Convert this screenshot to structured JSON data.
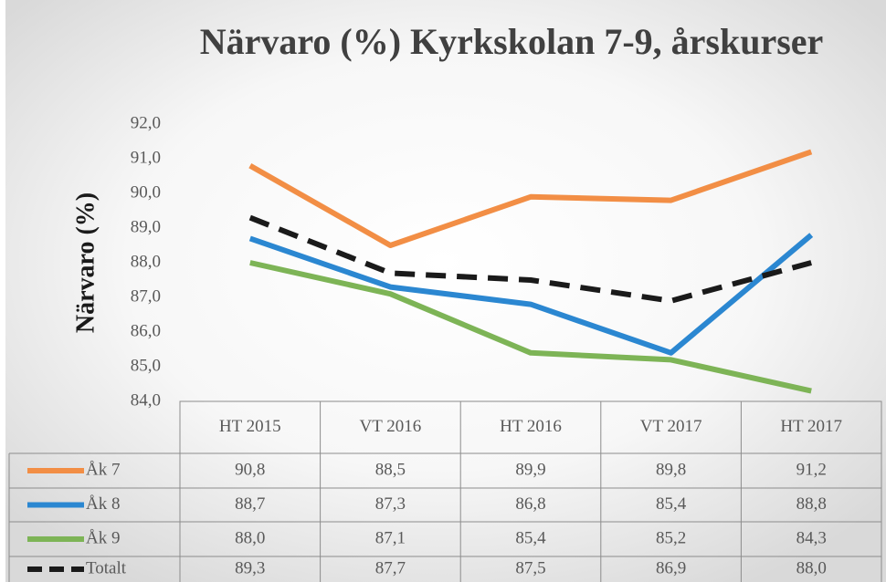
{
  "chart_data": {
    "type": "line",
    "title": "Närvaro (%) Kyrkskolan 7-9, årskurser",
    "y_label": "Närvaro  (%)",
    "categories": [
      "HT 2015",
      "VT 2016",
      "HT 2016",
      "VT 2017",
      "HT 2017"
    ],
    "series": [
      {
        "name": "Åk 7",
        "color": "#f28e45",
        "dashed": false,
        "values": [
          90.8,
          88.5,
          89.9,
          89.8,
          91.2
        ],
        "value_labels": [
          "90,8",
          "88,5",
          "89,9",
          "89,8",
          "91,2"
        ]
      },
      {
        "name": "Åk 8",
        "color": "#2b87d1",
        "dashed": false,
        "values": [
          88.7,
          87.3,
          86.8,
          85.4,
          88.8
        ],
        "value_labels": [
          "88,7",
          "87,3",
          "86,8",
          "85,4",
          "88,8"
        ]
      },
      {
        "name": "Åk 9",
        "color": "#7db456",
        "dashed": false,
        "values": [
          88.0,
          87.1,
          85.4,
          85.2,
          84.3
        ],
        "value_labels": [
          "88,0",
          "87,1",
          "85,4",
          "85,2",
          "84,3"
        ]
      },
      {
        "name": "Totalt",
        "color": "#1a1a1a",
        "dashed": true,
        "values": [
          89.3,
          87.7,
          87.5,
          86.9,
          88.0
        ],
        "value_labels": [
          "89,3",
          "87,7",
          "87,5",
          "86,9",
          "88,0"
        ]
      }
    ],
    "ylim": [
      84,
      92
    ],
    "yticks": [
      {
        "value": 84,
        "label": "84,0"
      },
      {
        "value": 85,
        "label": "85,0"
      },
      {
        "value": 86,
        "label": "86,0"
      },
      {
        "value": 87,
        "label": "87,0"
      },
      {
        "value": 88,
        "label": "88,0"
      },
      {
        "value": 89,
        "label": "89,0"
      },
      {
        "value": 90,
        "label": "90,0"
      },
      {
        "value": 91,
        "label": "91,0"
      },
      {
        "value": 92,
        "label": "92,0"
      }
    ],
    "grid": false
  }
}
